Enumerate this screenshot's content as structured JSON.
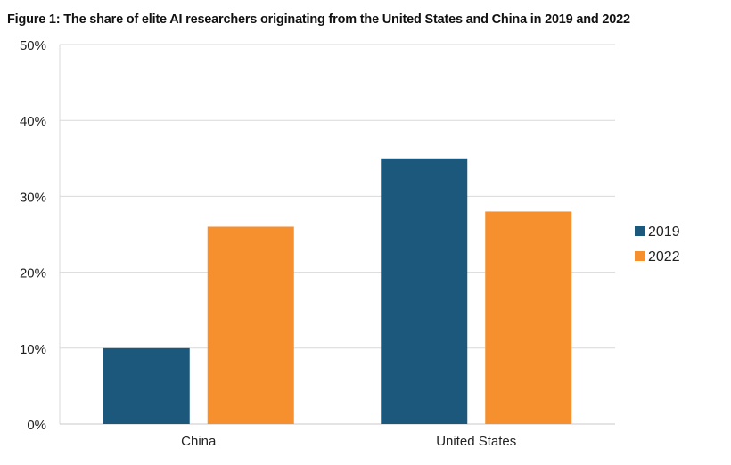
{
  "figure": {
    "title": "Figure 1: The share of elite AI researchers originating from the United States and China in 2019 and 2022"
  },
  "chart_data": {
    "type": "bar",
    "title": "Figure 1: The share of elite AI researchers originating from the United States and China in 2019 and 2022",
    "xlabel": "",
    "ylabel": "",
    "categories": [
      "China",
      "United States"
    ],
    "series": [
      {
        "name": "2019",
        "color": "#1c587c",
        "values": [
          10,
          35
        ]
      },
      {
        "name": "2022",
        "color": "#f68f2e",
        "values": [
          26,
          28
        ]
      }
    ],
    "ylim": [
      0,
      50
    ],
    "yticks": [
      0,
      10,
      20,
      30,
      40,
      50
    ],
    "ytick_labels": [
      "0%",
      "10%",
      "20%",
      "30%",
      "40%",
      "50%"
    ],
    "grid": true,
    "legend_position": "right"
  }
}
